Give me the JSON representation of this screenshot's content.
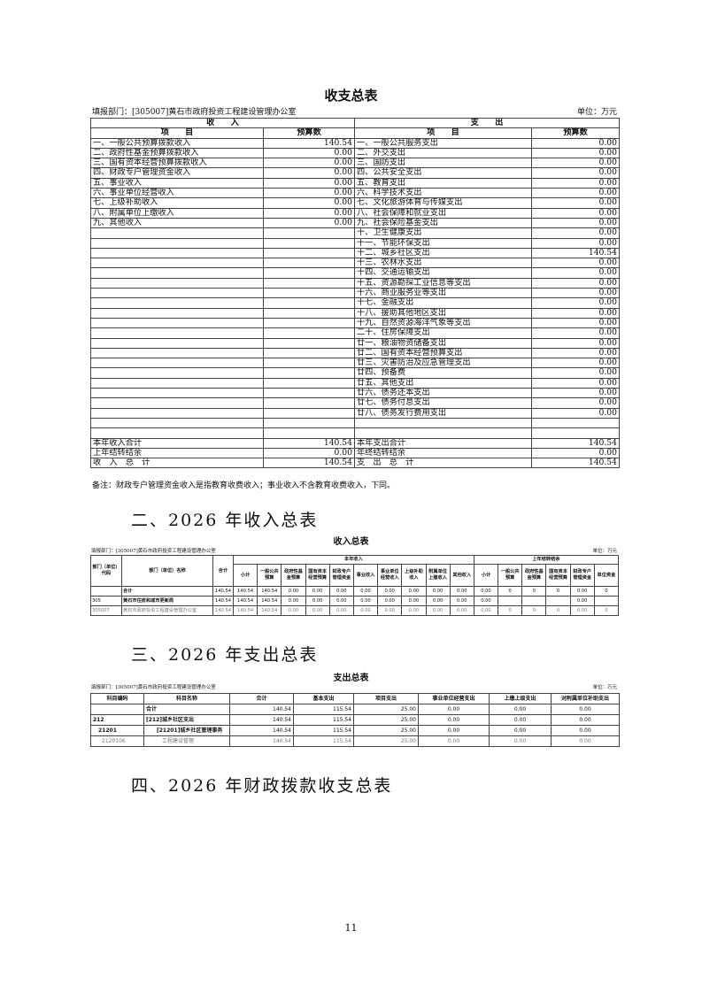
{
  "t1": {
    "title": "收支总表",
    "dept": "填报部门：[305007]黄石市政府投资工程建设管理办公室",
    "unit": "单位：万元",
    "income_header": "收　　入",
    "expense_header": "支　　出",
    "item_header": "项　　目",
    "amount_header": "预算数",
    "income": [
      [
        "一、一般公共预算拨款收入",
        "140.54"
      ],
      [
        "二、政府性基金预算拨款收入",
        "0.00"
      ],
      [
        "三、国有资本经营预算拨款收入",
        "0.00"
      ],
      [
        "四、财政专户管理资金收入",
        "0.00"
      ],
      [
        "五、事业收入",
        "0.00"
      ],
      [
        "六、事业单位经营收入",
        "0.00"
      ],
      [
        "七、上级补助收入",
        "0.00"
      ],
      [
        "八、附属单位上缴收入",
        "0.00"
      ],
      [
        "九、其他收入",
        "0.00"
      ]
    ],
    "expense": [
      [
        "一、一般公共服务支出",
        "0.00"
      ],
      [
        "二、外交支出",
        "0.00"
      ],
      [
        "三、国防支出",
        "0.00"
      ],
      [
        "四、公共安全支出",
        "0.00"
      ],
      [
        "五、教育支出",
        "0.00"
      ],
      [
        "六、科学技术支出",
        "0.00"
      ],
      [
        "七、文化旅游体育与传媒支出",
        "0.00"
      ],
      [
        "八、社会保障和就业支出",
        "0.00"
      ],
      [
        "九、社会保险基金支出",
        "0.00"
      ],
      [
        "十、卫生健康支出",
        "0.00"
      ],
      [
        "十一、节能环保支出",
        "0.00"
      ],
      [
        "十二、城乡社区支出",
        "140.54"
      ],
      [
        "十三、农林水支出",
        "0.00"
      ],
      [
        "十四、交通运输支出",
        "0.00"
      ],
      [
        "十五、资源勘探工业信息等支出",
        "0.00"
      ],
      [
        "十六、商业服务业等支出",
        "0.00"
      ],
      [
        "十七、金融支出",
        "0.00"
      ],
      [
        "十八、援助其他地区支出",
        "0.00"
      ],
      [
        "十九、自然资源海洋气象等支出",
        "0.00"
      ],
      [
        "二十、住房保障支出",
        "0.00"
      ],
      [
        "廿一、粮油物资储备支出",
        "0.00"
      ],
      [
        "廿二、国有资本经营预算支出",
        "0.00"
      ],
      [
        "廿三、灾害防治及应急管理支出",
        "0.00"
      ],
      [
        "廿四、预备费",
        "0.00"
      ],
      [
        "廿五、其他支出",
        "0.00"
      ],
      [
        "廿六、债务还本支出",
        "0.00"
      ],
      [
        "廿七、债务付息支出",
        "0.00"
      ],
      [
        "廿八、债务发行费用支出",
        "0.00"
      ]
    ],
    "totals": [
      [
        "本年收入合计",
        "140.54",
        "本年支出合计",
        "140.54"
      ],
      [
        "上年结转结余",
        "0.00",
        "年终结转结余",
        "0.00"
      ],
      [
        "收　入　总　计",
        "140.54",
        "支　出　总　计",
        "140.54"
      ]
    ],
    "note": "备注：财政专户管理资金收入是指教育收费收入；事业收入不含教育收费收入，下同。"
  },
  "h2": "二、2026 年收入总表",
  "t2": {
    "title": "收入总表",
    "dept": "填报部门：[305007]黄石市政府投资工程建设管理办公室",
    "unit": "单位：万元",
    "col_code": "部门（单位）代码",
    "col_name": "部门（单位）名称",
    "col_total": "合计",
    "grp1": "本年收入",
    "grp2": "上年结转结余",
    "sub1": [
      "小计",
      "一般公共预算",
      "政府性基金预算",
      "国有资本经营预算",
      "财政专户管理资金",
      "事业收入",
      "事业单位经营收入",
      "上级补助收入",
      "附属单位上缴收入",
      "其他收入"
    ],
    "sub2": [
      "小计",
      "一般公共预算",
      "政府性基金预算",
      "国有资本经营预算",
      "财政专户管理资金",
      "单位资金"
    ],
    "rows": [
      [
        "",
        "合计",
        "140.54",
        "140.54",
        "140.54",
        "0.00",
        "0.00",
        "0.00",
        "0.00",
        "0.00",
        "0.00",
        "0.00",
        "0.00",
        "0.00",
        "0",
        "0",
        "0",
        "0.00",
        "0"
      ],
      [
        "305",
        "黄石市住房和城市更新局",
        "140.54",
        "140.54",
        "140.54",
        "0.00",
        "0.00",
        "0.00",
        "0.00",
        "0.00",
        "0.00",
        "0.00",
        "0.00",
        "0.00",
        "",
        "",
        "",
        "0.00",
        ""
      ],
      [
        "305007",
        "黄石市政府投资工程建设管理办公室",
        "140.54",
        "140.54",
        "140.54",
        "0.00",
        "0.00",
        "0.00",
        "0.00",
        "0.00",
        "0.00",
        "0.00",
        "0.00",
        "0.00",
        "0",
        "0",
        "0",
        "0.00",
        "0"
      ]
    ]
  },
  "h3": "三、2026 年支出总表",
  "t3": {
    "title": "支出总表",
    "dept": "填报部门：[305007]黄石市政府投资工程建设管理办公室",
    "unit": "单位：万元",
    "headers": [
      "科目编码",
      "科目名称",
      "合计",
      "基本支出",
      "项目支出",
      "事业单位经营支出",
      "上缴上级支出",
      "对附属单位补助支出"
    ],
    "rows": [
      [
        "",
        "合计",
        "140.54",
        "115.54",
        "25.00",
        "0.00",
        "0.00",
        "0.00"
      ],
      [
        "212",
        "[212]城乡社区支出",
        "140.54",
        "115.54",
        "25.00",
        "0.00",
        "0.00",
        "0.00"
      ],
      [
        "21201",
        "[21201]城乡社区管理事务",
        "140.54",
        "115.54",
        "25.00",
        "0.00",
        "0.00",
        "0.00"
      ],
      [
        "2120106",
        "工程建设管理",
        "140.54",
        "115.54",
        "25.00",
        "0.00",
        "0.00",
        "0.00"
      ]
    ]
  },
  "h4": "四、2026 年财政拨款收支总表",
  "page_number": "11"
}
